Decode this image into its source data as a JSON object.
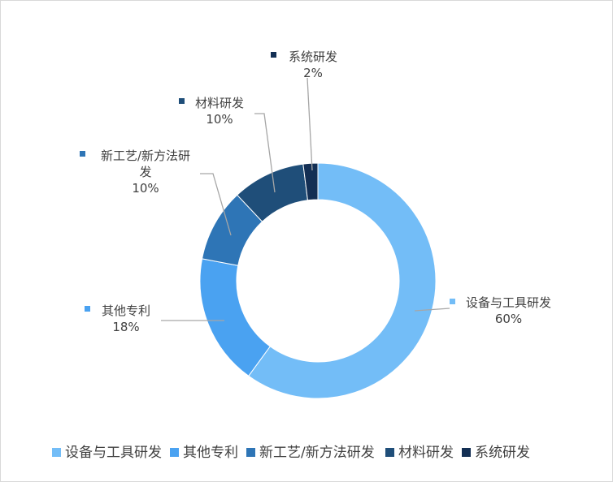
{
  "chart_data": {
    "type": "pie",
    "variant": "donut",
    "title": "",
    "legend_position": "bottom",
    "slices": [
      {
        "name": "设备与工具研发",
        "value": 60,
        "label": "60%",
        "color": "#73bdf7"
      },
      {
        "name": "其他专利",
        "value": 18,
        "label": "18%",
        "color": "#4aa2f1"
      },
      {
        "name": "新工艺/新方法研发",
        "value": 10,
        "label": "10%",
        "color": "#2e75b6"
      },
      {
        "name": "材料研发",
        "value": 10,
        "label": "10%",
        "color": "#1f4e79"
      },
      {
        "name": "系统研发",
        "value": 2,
        "label": "2%",
        "color": "#132f54"
      }
    ]
  }
}
